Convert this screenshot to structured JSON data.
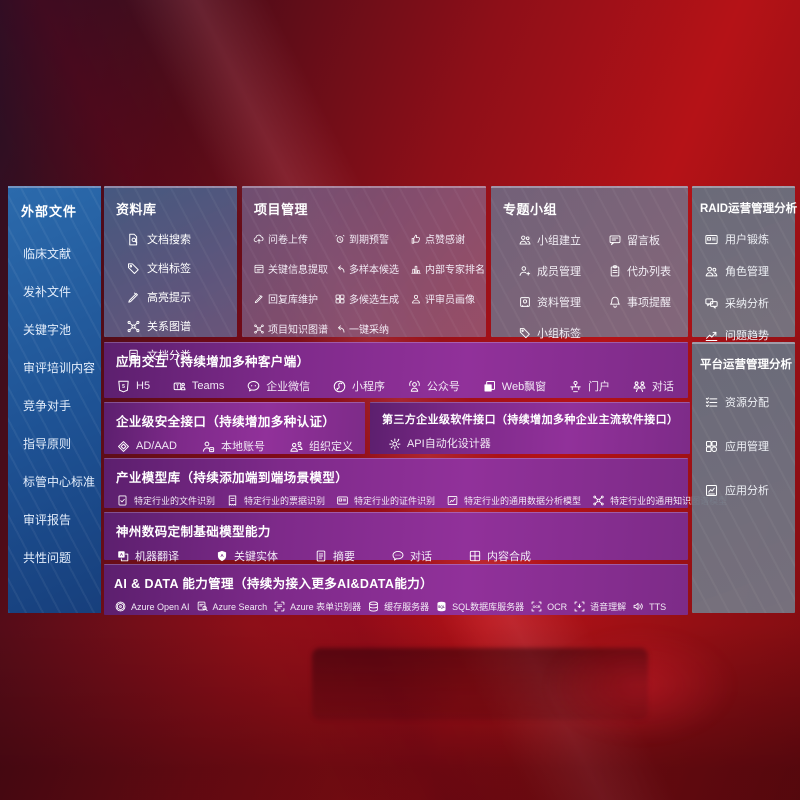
{
  "colors": {
    "background_red": "#a40f16",
    "sidebar_blue": "#2261a3",
    "panel_gray": "#6e7280",
    "band_purple": "#8e3198",
    "text": "#ffffff"
  },
  "external_files": {
    "title": "外部文件",
    "items": [
      "临床文献",
      "发补文件",
      "关键字池",
      "审评培训内容",
      "竞争对手",
      "指导原则",
      "标管中心标准",
      "审评报告",
      "共性问题"
    ]
  },
  "library": {
    "title": "资料库",
    "items": [
      {
        "icon": "doc-search",
        "label": "文档搜索"
      },
      {
        "icon": "tag",
        "label": "文档标签"
      },
      {
        "icon": "highlight-pen",
        "label": "高亮提示"
      },
      {
        "icon": "graph",
        "label": "关系图谱"
      },
      {
        "icon": "doc",
        "label": "文档分类"
      }
    ]
  },
  "project": {
    "title": "项目管理",
    "items": [
      {
        "icon": "cloud-upload",
        "label": "问卷上传"
      },
      {
        "icon": "alarm",
        "label": "到期预警"
      },
      {
        "icon": "thumbs-up",
        "label": "点赞感谢"
      },
      {
        "icon": "doc-extract",
        "label": "关键信息提取"
      },
      {
        "icon": "reply-arrow",
        "label": "多样本候选"
      },
      {
        "icon": "ranking",
        "label": "内部专家排名"
      },
      {
        "icon": "edit-pen",
        "label": "回复库维护"
      },
      {
        "icon": "multi-grid",
        "label": "多候选生成"
      },
      {
        "icon": "person",
        "label": "评审员画像"
      },
      {
        "icon": "graph",
        "label": "项目知识图谱"
      },
      {
        "icon": "adopt-arrow",
        "label": "一键采纳"
      }
    ]
  },
  "group": {
    "title": "专题小组",
    "items": [
      {
        "icon": "people",
        "label": "小组建立"
      },
      {
        "icon": "bbs-board",
        "label": "留言板"
      },
      {
        "icon": "person-manage",
        "label": "成员管理"
      },
      {
        "icon": "clipboard",
        "label": "代办列表"
      },
      {
        "icon": "album",
        "label": "资料管理"
      },
      {
        "icon": "bell",
        "label": "事项提醒"
      },
      {
        "icon": "tag",
        "label": "小组标签"
      }
    ]
  },
  "raid": {
    "title": "RAID运营管理分析",
    "items": [
      {
        "icon": "id-card",
        "label": "用户锻炼"
      },
      {
        "icon": "people",
        "label": "角色管理"
      },
      {
        "icon": "qa-chat",
        "label": "采纳分析"
      },
      {
        "icon": "trend-chart",
        "label": "问题趋势"
      }
    ]
  },
  "platform": {
    "title": "平台运营管理分析",
    "items": [
      {
        "icon": "task-list",
        "label": "资源分配"
      },
      {
        "icon": "apps-grid",
        "label": "应用管理"
      },
      {
        "icon": "chart-doc",
        "label": "应用分析"
      }
    ]
  },
  "interaction": {
    "title": "应用交互（持续增加多种客户端）",
    "items": [
      {
        "icon": "html5",
        "label": "H5"
      },
      {
        "icon": "teams",
        "label": "Teams"
      },
      {
        "icon": "wecom",
        "label": "企业微信"
      },
      {
        "icon": "mini-program",
        "label": "小程序"
      },
      {
        "icon": "official-account",
        "label": "公众号"
      },
      {
        "icon": "web-window",
        "label": "Web飘窗"
      },
      {
        "icon": "portal",
        "label": "门户"
      },
      {
        "icon": "dialog",
        "label": "对话"
      }
    ]
  },
  "security": {
    "title": "企业级安全接口（持续增加多种认证）",
    "items": [
      {
        "icon": "ad-diamond",
        "label": "AD/AAD"
      },
      {
        "icon": "local-account",
        "label": "本地账号"
      },
      {
        "icon": "org-people",
        "label": "组织定义"
      }
    ]
  },
  "third_party": {
    "title": "第三方企业级软件接口（持续增加多种企业主流软件接口）",
    "items": [
      {
        "icon": "api-gear",
        "label": "API自动化设计器"
      }
    ]
  },
  "industry_models": {
    "title": "产业模型库（持续添加端到端场景模型）",
    "items": [
      {
        "icon": "file-recognition",
        "label": "特定行业的文件识别"
      },
      {
        "icon": "receipt-recognition",
        "label": "特定行业的票据识别"
      },
      {
        "icon": "card-recognition",
        "label": "特定行业的证件识别"
      },
      {
        "icon": "data-analysis-model",
        "label": "特定行业的通用数据分析模型"
      },
      {
        "icon": "knowledge-graph-model",
        "label": "特定行业的通用知识图谱模型"
      }
    ]
  },
  "base_models": {
    "title": "神州数码定制基础模型能力",
    "items": [
      {
        "icon": "translate",
        "label": "机器翻译"
      },
      {
        "icon": "entity-shield",
        "label": "关键实体"
      },
      {
        "icon": "summary-doc",
        "label": "摘要"
      },
      {
        "icon": "chat-bubble",
        "label": "对话"
      },
      {
        "icon": "content-compose",
        "label": "内容合成"
      }
    ]
  },
  "ai_data": {
    "title": "AI & DATA 能力管理（持续为接入更多AI&DATA能力）",
    "items": [
      {
        "icon": "openai",
        "label": "Azure Open AI"
      },
      {
        "icon": "azure-search",
        "label": "Azure Search"
      },
      {
        "icon": "form-recognizer",
        "label": "Azure 表单识别器"
      },
      {
        "icon": "cache-server",
        "label": "缓存服务器"
      },
      {
        "icon": "sql-server",
        "label": "SQL数据库服务器"
      },
      {
        "icon": "ocr",
        "label": "OCR"
      },
      {
        "icon": "speech",
        "label": "语音理解"
      },
      {
        "icon": "tts",
        "label": "TTS"
      }
    ]
  }
}
